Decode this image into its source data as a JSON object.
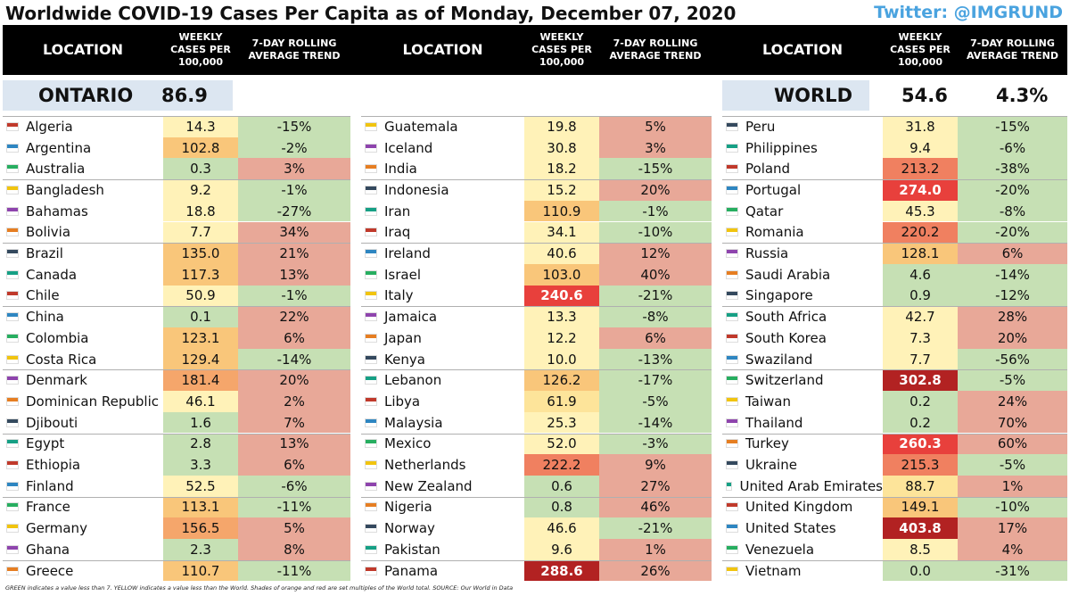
{
  "title": "Worldwide COVID-19 Cases Per Capita as of Monday, December 07, 2020",
  "twitter": "Twitter: @IMGRUND",
  "headers": {
    "location": "LOCATION",
    "weekly": [
      "WEEKLY",
      "CASES PER",
      "100,000"
    ],
    "trend": [
      "7-DAY ROLLING",
      "AVERAGE TREND"
    ]
  },
  "summary": {
    "ontario_label": "ONTARIO",
    "ontario_value": "86.9",
    "world_label": "WORLD",
    "world_value": "54.6",
    "world_trend": "4.3%"
  },
  "colors": {
    "green": "#c6e0b4",
    "light_yellow": "#fff2b8",
    "yellow": "#fde49a",
    "orange_light": "#f9c67a",
    "orange": "#f5a66b",
    "red_orange": "#f08060",
    "red": "#e8403c",
    "dark_red": "#b22222",
    "trend_green": "#c6e0b4",
    "trend_red": "#e8a898"
  },
  "columns": [
    [
      {
        "country": "Algeria",
        "value": "14.3",
        "trend": "-15%"
      },
      {
        "country": "Argentina",
        "value": "102.8",
        "trend": "-2%"
      },
      {
        "country": "Australia",
        "value": "0.3",
        "trend": "3%"
      },
      {
        "country": "Bangladesh",
        "value": "9.2",
        "trend": "-1%"
      },
      {
        "country": "Bahamas",
        "value": "18.8",
        "trend": "-27%"
      },
      {
        "country": "Bolivia",
        "value": "7.7",
        "trend": "34%"
      },
      {
        "country": "Brazil",
        "value": "135.0",
        "trend": "21%"
      },
      {
        "country": "Canada",
        "value": "117.3",
        "trend": "13%"
      },
      {
        "country": "Chile",
        "value": "50.9",
        "trend": "-1%"
      },
      {
        "country": "China",
        "value": "0.1",
        "trend": "22%"
      },
      {
        "country": "Colombia",
        "value": "123.1",
        "trend": "6%"
      },
      {
        "country": "Costa Rica",
        "value": "129.4",
        "trend": "-14%"
      },
      {
        "country": "Denmark",
        "value": "181.4",
        "trend": "20%"
      },
      {
        "country": "Dominican Republic",
        "value": "46.1",
        "trend": "2%"
      },
      {
        "country": "Djibouti",
        "value": "1.6",
        "trend": "7%"
      },
      {
        "country": "Egypt",
        "value": "2.8",
        "trend": "13%"
      },
      {
        "country": "Ethiopia",
        "value": "3.3",
        "trend": "6%"
      },
      {
        "country": "Finland",
        "value": "52.5",
        "trend": "-6%"
      },
      {
        "country": "France",
        "value": "113.1",
        "trend": "-11%"
      },
      {
        "country": "Germany",
        "value": "156.5",
        "trend": "5%"
      },
      {
        "country": "Ghana",
        "value": "2.3",
        "trend": "8%"
      },
      {
        "country": "Greece",
        "value": "110.7",
        "trend": "-11%"
      }
    ],
    [
      {
        "country": "Guatemala",
        "value": "19.8",
        "trend": "5%"
      },
      {
        "country": "Iceland",
        "value": "30.8",
        "trend": "3%"
      },
      {
        "country": "India",
        "value": "18.2",
        "trend": "-15%"
      },
      {
        "country": "Indonesia",
        "value": "15.2",
        "trend": "20%"
      },
      {
        "country": "Iran",
        "value": "110.9",
        "trend": "-1%"
      },
      {
        "country": "Iraq",
        "value": "34.1",
        "trend": "-10%"
      },
      {
        "country": "Ireland",
        "value": "40.6",
        "trend": "12%"
      },
      {
        "country": "Israel",
        "value": "103.0",
        "trend": "40%"
      },
      {
        "country": "Italy",
        "value": "240.6",
        "trend": "-21%"
      },
      {
        "country": "Jamaica",
        "value": "13.3",
        "trend": "-8%"
      },
      {
        "country": "Japan",
        "value": "12.2",
        "trend": "6%"
      },
      {
        "country": "Kenya",
        "value": "10.0",
        "trend": "-13%"
      },
      {
        "country": "Lebanon",
        "value": "126.2",
        "trend": "-17%"
      },
      {
        "country": "Libya",
        "value": "61.9",
        "trend": "-5%"
      },
      {
        "country": "Malaysia",
        "value": "25.3",
        "trend": "-14%"
      },
      {
        "country": "Mexico",
        "value": "52.0",
        "trend": "-3%"
      },
      {
        "country": "Netherlands",
        "value": "222.2",
        "trend": "9%"
      },
      {
        "country": "New Zealand",
        "value": "0.6",
        "trend": "27%"
      },
      {
        "country": "Nigeria",
        "value": "0.8",
        "trend": "46%"
      },
      {
        "country": "Norway",
        "value": "46.6",
        "trend": "-21%"
      },
      {
        "country": "Pakistan",
        "value": "9.6",
        "trend": "1%"
      },
      {
        "country": "Panama",
        "value": "288.6",
        "trend": "26%"
      }
    ],
    [
      {
        "country": "Peru",
        "value": "31.8",
        "trend": "-15%"
      },
      {
        "country": "Philippines",
        "value": "9.4",
        "trend": "-6%"
      },
      {
        "country": "Poland",
        "value": "213.2",
        "trend": "-38%"
      },
      {
        "country": "Portugal",
        "value": "274.0",
        "trend": "-20%"
      },
      {
        "country": "Qatar",
        "value": "45.3",
        "trend": "-8%"
      },
      {
        "country": "Romania",
        "value": "220.2",
        "trend": "-20%"
      },
      {
        "country": "Russia",
        "value": "128.1",
        "trend": "6%"
      },
      {
        "country": "Saudi Arabia",
        "value": "4.6",
        "trend": "-14%"
      },
      {
        "country": "Singapore",
        "value": "0.9",
        "trend": "-12%"
      },
      {
        "country": "South Africa",
        "value": "42.7",
        "trend": "28%"
      },
      {
        "country": "South Korea",
        "value": "7.3",
        "trend": "20%"
      },
      {
        "country": "Swaziland",
        "value": "7.7",
        "trend": "-56%"
      },
      {
        "country": "Switzerland",
        "value": "302.8",
        "trend": "-5%"
      },
      {
        "country": "Taiwan",
        "value": "0.2",
        "trend": "24%"
      },
      {
        "country": "Thailand",
        "value": "0.2",
        "trend": "70%"
      },
      {
        "country": "Turkey",
        "value": "260.3",
        "trend": "60%"
      },
      {
        "country": "Ukraine",
        "value": "215.3",
        "trend": "-5%"
      },
      {
        "country": "United Arab Emirates",
        "value": "88.7",
        "trend": "1%"
      },
      {
        "country": "United Kingdom",
        "value": "149.1",
        "trend": "-10%"
      },
      {
        "country": "United States",
        "value": "403.8",
        "trend": "17%"
      },
      {
        "country": "Venezuela",
        "value": "8.5",
        "trend": "4%"
      },
      {
        "country": "Vietnam",
        "value": "0.0",
        "trend": "-31%"
      }
    ]
  ],
  "footnote": "GREEN indicates a value less than 7. YELLOW indicates a value less than the World. Shades of orange and red are set multiples of the World total. SOURCE: Our World in Data"
}
